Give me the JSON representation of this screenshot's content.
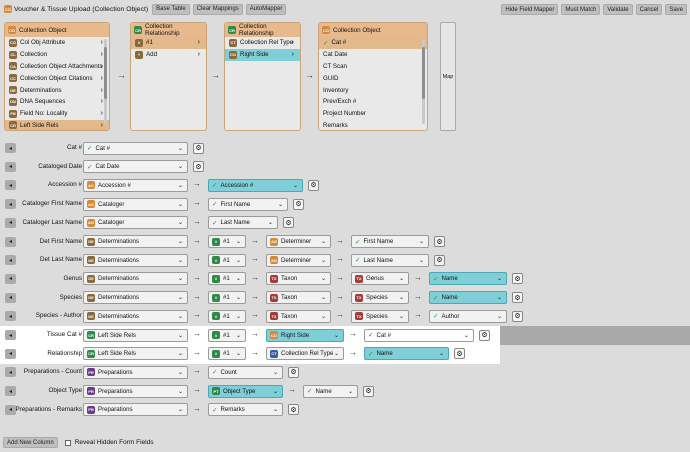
{
  "header": {
    "title": "Voucher & Tissue Upload (Collection Object)",
    "buttons_left": [
      "Base Table",
      "Clear Mappings",
      "AutoMapper"
    ],
    "buttons_right": [
      "Hide Field Mapper",
      "Must Match",
      "Validate",
      "Cancel",
      "Save"
    ]
  },
  "panels": [
    {
      "title": "Collection Object",
      "items": [
        {
          "icon": "CO",
          "label": "Col Obj Attribute",
          "chev": true,
          "style": ""
        },
        {
          "icon": "CL",
          "label": "Collection",
          "chev": true,
          "style": ""
        },
        {
          "icon": "CA",
          "label": "Collection Object Attachments",
          "chev": true,
          "style": ""
        },
        {
          "icon": "CC",
          "label": "Collection Object Citations",
          "chev": true,
          "style": ""
        },
        {
          "icon": "DE",
          "label": "Determinations",
          "chev": true,
          "style": ""
        },
        {
          "icon": "DN",
          "label": "DNA Sequences",
          "chev": true,
          "style": ""
        },
        {
          "icon": "FN",
          "label": "Field No: Locality",
          "chev": true,
          "style": ""
        },
        {
          "icon": "CR",
          "label": "Left Side Rels",
          "chev": true,
          "style": "sel"
        }
      ]
    },
    {
      "title": "Collection Relationship",
      "items": [
        {
          "icon": "#",
          "label": "#1",
          "chev": true,
          "style": "sel"
        },
        {
          "icon": "+",
          "label": "Add",
          "chev": true,
          "style": ""
        }
      ]
    },
    {
      "title": "Collection Relationship",
      "items": [
        {
          "icon": "CT",
          "label": "Collection Rel Type",
          "chev": true,
          "style": ""
        },
        {
          "icon": "CO",
          "label": "Right Side",
          "chev": true,
          "style": "cyan"
        }
      ]
    },
    {
      "title": "Collection Object",
      "items": [
        {
          "icon": "",
          "label": "Cat #",
          "chev": false,
          "style": "sel",
          "check": true
        },
        {
          "icon": "",
          "label": "Cat Date",
          "chev": false,
          "style": ""
        },
        {
          "icon": "",
          "label": "CT Scan",
          "chev": false,
          "style": ""
        },
        {
          "icon": "",
          "label": "GUID",
          "chev": false,
          "style": ""
        },
        {
          "icon": "",
          "label": "Inventory",
          "chev": false,
          "style": ""
        },
        {
          "icon": "",
          "label": "Prev/Exch #",
          "chev": false,
          "style": ""
        },
        {
          "icon": "",
          "label": "Project Number",
          "chev": false,
          "style": ""
        },
        {
          "icon": "",
          "label": "Remarks",
          "chev": false,
          "style": ""
        }
      ]
    }
  ],
  "map_button": "Map",
  "rows": [
    {
      "label": "Cat #",
      "cells": [
        {
          "t": "check",
          "v": "Cat #",
          "w": 105
        }
      ],
      "gear": true
    },
    {
      "label": "Cataloged Date",
      "cells": [
        {
          "t": "check",
          "v": "Cat Date",
          "w": 105
        }
      ],
      "gear": true
    },
    {
      "label": "Accession #",
      "cells": [
        {
          "t": "icon",
          "i": "AC",
          "c": "#d68a3c",
          "v": "Accession #",
          "w": 105
        },
        {
          "t": "check",
          "v": "Accession #",
          "w": 95,
          "cyan": true
        }
      ],
      "gear": true
    },
    {
      "label": "Cataloger First Name",
      "cells": [
        {
          "t": "icon",
          "i": "AG",
          "c": "#d68a3c",
          "v": "Cataloger",
          "w": 105
        },
        {
          "t": "check",
          "v": "First Name",
          "w": 80
        }
      ],
      "gear": true
    },
    {
      "label": "Cataloger Last Name",
      "cells": [
        {
          "t": "icon",
          "i": "AG",
          "c": "#d68a3c",
          "v": "Cataloger",
          "w": 105
        },
        {
          "t": "check",
          "v": "Last Name",
          "w": 70
        }
      ],
      "gear": true
    },
    {
      "label": "Det First Name",
      "cells": [
        {
          "t": "icon",
          "i": "DE",
          "c": "#8a6a3c",
          "v": "Determinations",
          "w": 105
        },
        {
          "t": "icon",
          "i": "#",
          "c": "#2f8a4a",
          "v": "#1",
          "w": 38
        },
        {
          "t": "icon",
          "i": "AG",
          "c": "#d68a3c",
          "v": "Determiner",
          "w": 65
        },
        {
          "t": "check",
          "v": "First Name",
          "w": 78
        }
      ],
      "gear": true
    },
    {
      "label": "Det Last Name",
      "cells": [
        {
          "t": "icon",
          "i": "DE",
          "c": "#8a6a3c",
          "v": "Determinations",
          "w": 105
        },
        {
          "t": "icon",
          "i": "#",
          "c": "#2f8a4a",
          "v": "#1",
          "w": 38
        },
        {
          "t": "icon",
          "i": "AG",
          "c": "#d68a3c",
          "v": "Determiner",
          "w": 65
        },
        {
          "t": "check",
          "v": "Last Name",
          "w": 78
        }
      ],
      "gear": true
    },
    {
      "label": "Genus",
      "cells": [
        {
          "t": "icon",
          "i": "DE",
          "c": "#8a6a3c",
          "v": "Determinations",
          "w": 105
        },
        {
          "t": "icon",
          "i": "#",
          "c": "#2f8a4a",
          "v": "#1",
          "w": 38
        },
        {
          "t": "icon",
          "i": "TX",
          "c": "#a83a3a",
          "v": "Taxon",
          "w": 65
        },
        {
          "t": "icon",
          "i": "TX",
          "c": "#a83a3a",
          "v": "Genus",
          "w": 58
        },
        {
          "t": "check",
          "v": "Name",
          "w": 78,
          "cyan": true
        }
      ],
      "gear": true
    },
    {
      "label": "Species",
      "cells": [
        {
          "t": "icon",
          "i": "DE",
          "c": "#8a6a3c",
          "v": "Determinations",
          "w": 105
        },
        {
          "t": "icon",
          "i": "#",
          "c": "#2f8a4a",
          "v": "#1",
          "w": 38
        },
        {
          "t": "icon",
          "i": "TX",
          "c": "#a83a3a",
          "v": "Taxon",
          "w": 65
        },
        {
          "t": "icon",
          "i": "TX",
          "c": "#a83a3a",
          "v": "Species",
          "w": 58
        },
        {
          "t": "check",
          "v": "Name",
          "w": 78,
          "cyan": true
        }
      ],
      "gear": true
    },
    {
      "label": "Species - Author",
      "cells": [
        {
          "t": "icon",
          "i": "DE",
          "c": "#8a6a3c",
          "v": "Determinations",
          "w": 105
        },
        {
          "t": "icon",
          "i": "#",
          "c": "#2f8a4a",
          "v": "#1",
          "w": 38
        },
        {
          "t": "icon",
          "i": "TX",
          "c": "#a83a3a",
          "v": "Taxon",
          "w": 65
        },
        {
          "t": "icon",
          "i": "TX",
          "c": "#a83a3a",
          "v": "Species",
          "w": 58
        },
        {
          "t": "check",
          "v": "Author",
          "w": 78
        }
      ],
      "gear": true
    },
    {
      "label": "Tissue Cat #",
      "cells": [
        {
          "t": "icon",
          "i": "CR",
          "c": "#2f8a4a",
          "v": "Left Side Rels",
          "w": 105
        },
        {
          "t": "icon",
          "i": "#",
          "c": "#2f8a4a",
          "v": "#1",
          "w": 38
        },
        {
          "t": "icon",
          "i": "CO",
          "c": "#d68a3c",
          "v": "Right Side",
          "w": 78,
          "cyan": true
        },
        {
          "t": "check",
          "v": "Cat #",
          "w": 110,
          "white": true
        }
      ],
      "gear": true,
      "hl": true
    },
    {
      "label": "Relationship",
      "cells": [
        {
          "t": "icon",
          "i": "CR",
          "c": "#2f8a4a",
          "v": "Left Side Rels",
          "w": 105
        },
        {
          "t": "icon",
          "i": "#",
          "c": "#2f8a4a",
          "v": "#1",
          "w": 38
        },
        {
          "t": "icon",
          "i": "CT",
          "c": "#3a5ca8",
          "v": "Collection Rel Type",
          "w": 78
        },
        {
          "t": "check",
          "v": "Name",
          "w": 85,
          "cyan": true
        }
      ],
      "gear": true,
      "hl": true
    },
    {
      "label": "Preparations - Count",
      "cells": [
        {
          "t": "icon",
          "i": "PR",
          "c": "#6a3c8a",
          "v": "Preparations",
          "w": 105
        },
        {
          "t": "check",
          "v": "Count",
          "w": 75
        }
      ],
      "gear": true
    },
    {
      "label": "Object Type",
      "cells": [
        {
          "t": "icon",
          "i": "PR",
          "c": "#6a3c8a",
          "v": "Preparations",
          "w": 105
        },
        {
          "t": "icon",
          "i": "PT",
          "c": "#2f8a4a",
          "v": "Object Type",
          "w": 75,
          "cyan": true
        },
        {
          "t": "check",
          "v": "Name",
          "w": 55
        }
      ],
      "gear": true
    },
    {
      "label": "Preparations - Remarks",
      "cells": [
        {
          "t": "icon",
          "i": "PR",
          "c": "#6a3c8a",
          "v": "Preparations",
          "w": 105
        },
        {
          "t": "check",
          "v": "Remarks",
          "w": 75
        }
      ],
      "gear": true
    }
  ],
  "footer": {
    "add_column": "Add New Column",
    "reveal_label": "Reveal Hidden Form Fields"
  },
  "colors": {
    "accent_orange": "#e7b98d",
    "cyan": "#7ecfd8",
    "check_green": "#2b8f2b"
  }
}
